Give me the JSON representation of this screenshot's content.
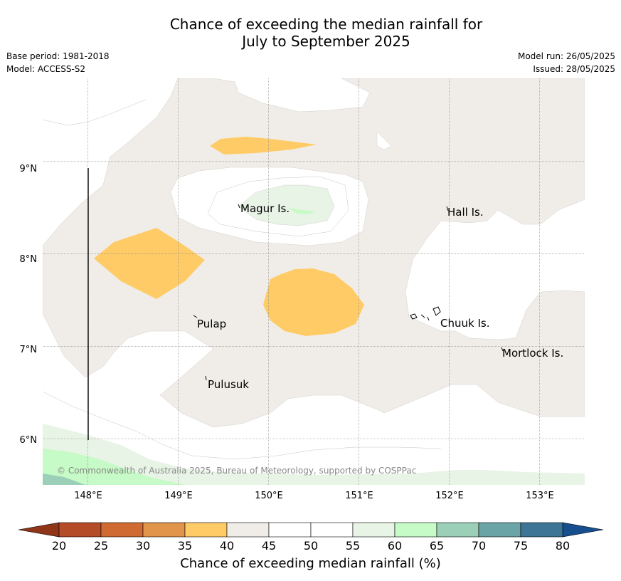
{
  "title_line1": "Chance of exceeding the median rainfall for",
  "title_line2": "July to September 2025",
  "meta_left": {
    "base_period": "Base period: 1981-2018",
    "model": "Model: ACCESS-S2"
  },
  "meta_right": {
    "model_run": "Model run: 26/05/2025",
    "issued": "Issued: 28/05/2025"
  },
  "map": {
    "lon_range": [
      147.5,
      153.5
    ],
    "lat_range": [
      5.5,
      9.9
    ],
    "lon_ticks": [
      "148°E",
      "149°E",
      "150°E",
      "151°E",
      "152°E",
      "153°E"
    ],
    "lat_ticks": [
      "9°N",
      "8°N",
      "7°N",
      "6°N"
    ],
    "places": [
      "Magur Is.",
      "Hall Is.",
      "Pulap",
      "Chuuk Is.",
      "Mortlock Is.",
      "Pulusuk"
    ],
    "copyright": "© Commonwealth of Australia 2025, Bureau of Meteorology, supported by COSPPac"
  },
  "colorbar": {
    "ticks": [
      "20",
      "25",
      "30",
      "35",
      "40",
      "45",
      "50",
      "55",
      "60",
      "65",
      "70",
      "75",
      "80"
    ],
    "colors": [
      "#b44c27",
      "#cf6a32",
      "#e0954a",
      "#fecb67",
      "#f0ede8",
      "#ffffff",
      "#ffffff",
      "#e8f4e6",
      "#c6fac6",
      "#9ccfb7",
      "#6aa4a6",
      "#3d7596"
    ],
    "low_color": "#8f3518",
    "high_color": "#174e8e",
    "label": "Chance of exceeding median rainfall (%)"
  }
}
